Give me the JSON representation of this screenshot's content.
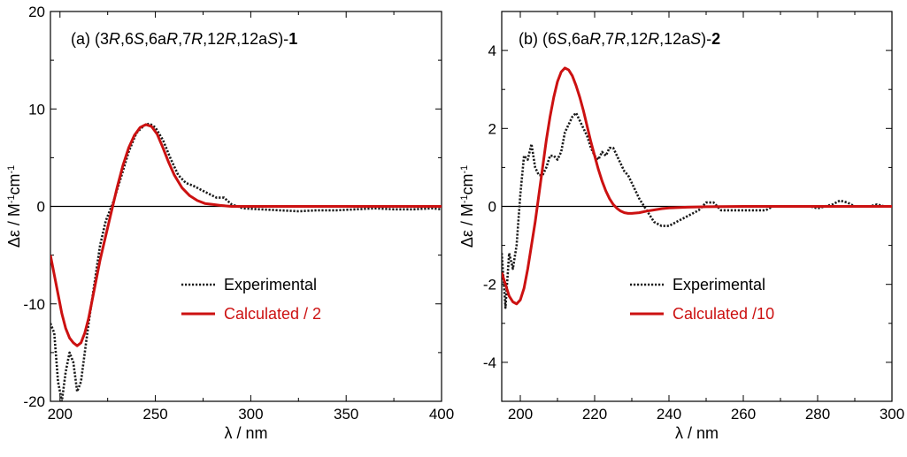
{
  "chart_data": [
    {
      "type": "line",
      "panel": "a",
      "title": {
        "parts": [
          {
            "t": "(a) (3",
            "s": "n"
          },
          {
            "t": "R",
            "s": "i"
          },
          {
            "t": ",6",
            "s": "n"
          },
          {
            "t": "S",
            "s": "i"
          },
          {
            "t": ",6a",
            "s": "n"
          },
          {
            "t": "R",
            "s": "i"
          },
          {
            "t": ",7",
            "s": "n"
          },
          {
            "t": "R",
            "s": "i"
          },
          {
            "t": ",12",
            "s": "n"
          },
          {
            "t": "R",
            "s": "i"
          },
          {
            "t": ",12a",
            "s": "n"
          },
          {
            "t": "S",
            "s": "i"
          },
          {
            "t": ")-",
            "s": "n"
          },
          {
            "t": "1",
            "s": "b"
          }
        ]
      },
      "xlabel": "λ / nm",
      "ylabel": {
        "parts": [
          {
            "t": "Δε / M",
            "s": "n"
          },
          {
            "t": "-1",
            "s": "sup"
          },
          {
            "t": "cm",
            "s": "n"
          },
          {
            "t": "-1",
            "s": "sup"
          }
        ]
      },
      "xlim": [
        195,
        400
      ],
      "ylim": [
        -20,
        20
      ],
      "xticks": [
        200,
        250,
        300,
        350,
        400
      ],
      "yticks": [
        -20,
        -10,
        0,
        10,
        20
      ],
      "zero_line": true,
      "grid": false,
      "legend_position": "lower-right",
      "series": [
        {
          "name": "Experimental",
          "style": "dotted",
          "color": "#1a1a1a",
          "x": [
            195,
            197,
            199,
            201,
            203,
            205,
            207,
            209,
            211,
            213,
            215,
            218,
            221,
            224,
            228,
            232,
            236,
            240,
            244,
            247,
            250,
            254,
            258,
            262,
            266,
            270,
            274,
            278,
            282,
            286,
            290,
            296,
            305,
            315,
            325,
            335,
            345,
            355,
            365,
            375,
            385,
            395,
            400
          ],
          "y": [
            -12,
            -13,
            -18,
            -20,
            -17,
            -15,
            -16,
            -19,
            -18,
            -15,
            -12,
            -8,
            -4,
            -1.5,
            0.5,
            3,
            5.6,
            7.5,
            8.3,
            8.5,
            8.1,
            6.8,
            4.9,
            3.2,
            2.4,
            2.1,
            1.7,
            1.3,
            0.9,
            0.9,
            0.2,
            -0.2,
            -0.3,
            -0.4,
            -0.5,
            -0.4,
            -0.4,
            -0.3,
            -0.2,
            -0.3,
            -0.3,
            -0.2,
            -0.3
          ]
        },
        {
          "name": "Calculated / 2",
          "style": "solid",
          "color": "#cc1111",
          "x": [
            195,
            197,
            199,
            201,
            203,
            205,
            207,
            209,
            211,
            213,
            215,
            218,
            221,
            224,
            227,
            230,
            233,
            236,
            239,
            242,
            245,
            248,
            251,
            254,
            257,
            260,
            264,
            268,
            272,
            276,
            280,
            284,
            290,
            300,
            320,
            350,
            400
          ],
          "y": [
            -5,
            -7,
            -9,
            -11,
            -12.5,
            -13.5,
            -14,
            -14.3,
            -14,
            -13,
            -11.5,
            -8.5,
            -5.5,
            -3,
            -0.5,
            2,
            4.2,
            6,
            7.3,
            8.1,
            8.4,
            8.2,
            7.4,
            6,
            4.5,
            3.2,
            1.9,
            1.1,
            0.6,
            0.3,
            0.2,
            0.1,
            0,
            0,
            0,
            0,
            0
          ]
        }
      ]
    },
    {
      "type": "line",
      "panel": "b",
      "title": {
        "parts": [
          {
            "t": "(b) (6",
            "s": "n"
          },
          {
            "t": "S",
            "s": "i"
          },
          {
            "t": ",6a",
            "s": "n"
          },
          {
            "t": "R",
            "s": "i"
          },
          {
            "t": ",7",
            "s": "n"
          },
          {
            "t": "R",
            "s": "i"
          },
          {
            "t": ",12",
            "s": "n"
          },
          {
            "t": "R",
            "s": "i"
          },
          {
            "t": ",12a",
            "s": "n"
          },
          {
            "t": "S",
            "s": "i"
          },
          {
            "t": ")-",
            "s": "n"
          },
          {
            "t": "2",
            "s": "b"
          }
        ]
      },
      "xlabel": "λ / nm",
      "ylabel": {
        "parts": [
          {
            "t": "Δε / M",
            "s": "n"
          },
          {
            "t": "-1",
            "s": "sup"
          },
          {
            "t": "cm",
            "s": "n"
          },
          {
            "t": "-1",
            "s": "sup"
          }
        ]
      },
      "xlim": [
        195,
        300
      ],
      "ylim": [
        -5,
        5
      ],
      "xticks": [
        200,
        220,
        240,
        260,
        280,
        300
      ],
      "yticks": [
        -4,
        -2,
        0,
        2,
        4
      ],
      "zero_line": true,
      "grid": false,
      "legend_position": "lower-right",
      "series": [
        {
          "name": "Experimental",
          "style": "dotted",
          "color": "#1a1a1a",
          "x": [
            195,
            196,
            197,
            198,
            199,
            200,
            201,
            202,
            203,
            204,
            205,
            206,
            207,
            208,
            209,
            210,
            211,
            212,
            213,
            214,
            215,
            216,
            217,
            218,
            219,
            220,
            221,
            222,
            223,
            224,
            225,
            226,
            227,
            228,
            229,
            230,
            232,
            234,
            236,
            238,
            240,
            242,
            244,
            246,
            248,
            250,
            252,
            254,
            256,
            258,
            260,
            262,
            264,
            266,
            268,
            270,
            272,
            274,
            276,
            278,
            280,
            282,
            284,
            286,
            288,
            290,
            292,
            294,
            296,
            298,
            300
          ],
          "y": [
            -1.2,
            -2.6,
            -1.2,
            -1.6,
            -1.0,
            0.3,
            1.3,
            1.2,
            1.6,
            1.0,
            0.8,
            0.8,
            1.0,
            1.3,
            1.3,
            1.2,
            1.4,
            1.9,
            2.1,
            2.3,
            2.4,
            2.2,
            2.0,
            1.8,
            1.5,
            1.3,
            1.2,
            1.4,
            1.3,
            1.5,
            1.5,
            1.3,
            1.1,
            0.9,
            0.8,
            0.6,
            0.2,
            -0.1,
            -0.4,
            -0.5,
            -0.5,
            -0.4,
            -0.3,
            -0.2,
            -0.1,
            0.1,
            0.1,
            -0.1,
            -0.1,
            -0.1,
            -0.1,
            -0.1,
            -0.1,
            -0.1,
            0.0,
            0.0,
            0.0,
            0.0,
            0.0,
            0.0,
            -0.05,
            0.0,
            0.05,
            0.15,
            0.1,
            0.0,
            0.0,
            0.0,
            0.05,
            0.0,
            0.0
          ]
        },
        {
          "name": "Calculated /10",
          "style": "solid",
          "color": "#cc1111",
          "x": [
            195,
            196,
            197,
            198,
            199,
            200,
            201,
            202,
            203,
            204,
            205,
            206,
            207,
            208,
            209,
            210,
            211,
            212,
            213,
            214,
            215,
            216,
            217,
            218,
            219,
            220,
            221,
            222,
            223,
            224,
            225,
            226,
            227,
            228,
            229,
            230,
            232,
            234,
            236,
            238,
            240,
            245,
            250,
            260,
            270,
            280,
            290,
            300
          ],
          "y": [
            -1.7,
            -2.0,
            -2.3,
            -2.45,
            -2.5,
            -2.4,
            -2.1,
            -1.6,
            -1.0,
            -0.4,
            0.3,
            1.0,
            1.7,
            2.3,
            2.8,
            3.2,
            3.45,
            3.55,
            3.5,
            3.35,
            3.1,
            2.8,
            2.45,
            2.05,
            1.65,
            1.3,
            0.95,
            0.65,
            0.4,
            0.2,
            0.05,
            -0.05,
            -0.12,
            -0.16,
            -0.18,
            -0.18,
            -0.16,
            -0.12,
            -0.09,
            -0.06,
            -0.04,
            -0.02,
            -0.01,
            0.0,
            0.0,
            0.0,
            0.0,
            0.0
          ]
        }
      ]
    }
  ]
}
